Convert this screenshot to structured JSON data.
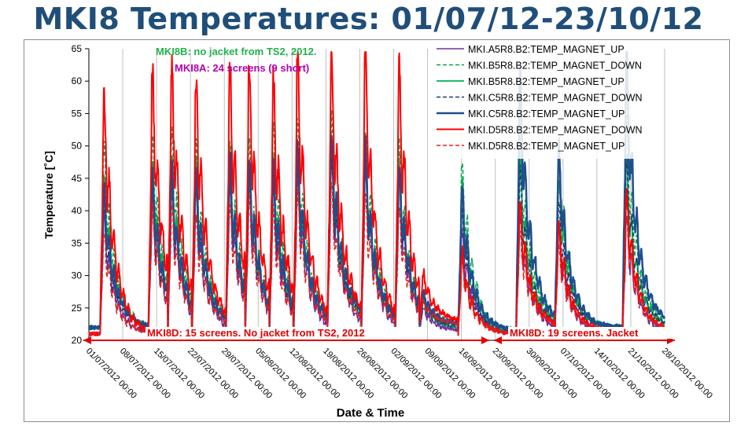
{
  "slide": {
    "title": "MKI8 Temperatures: 01/07/12-23/10/12"
  },
  "annotations": {
    "mki8b_note": "MKI8B: no jacket from TS2, 2012.",
    "mki8a_note": "MKI8A: 24 screens (9 short)",
    "mki8d_left_note": "MKI8D: 15 screens. No jacket from TS2, 2012",
    "mki8d_right_note": "MKI8D: 19 screens. Jacket"
  },
  "colors": {
    "title": "#1f4e79",
    "annotation_green": "#22b14c",
    "annotation_magenta": "#b000b0",
    "annotation_red": "#e00000"
  },
  "chart_data": {
    "type": "line",
    "xlabel": "Date & Time",
    "ylabel": "Temperature [˚C]",
    "ylim": [
      20,
      65
    ],
    "xlim": [
      "01/07/2012 00:00",
      "28/10/2012 00:00"
    ],
    "yticks": [
      "20",
      "25",
      "30",
      "35",
      "40",
      "45",
      "50",
      "55",
      "60",
      "65"
    ],
    "xticks": [
      "01/07/2012 00:00",
      "08/07/2012 00:00",
      "15/07/2012 00:00",
      "22/07/2012 00:00",
      "29/07/2012 00:00",
      "05/08/2012 00:00",
      "12/08/2012 00:00",
      "19/08/2012 00:00",
      "26/08/2012 00:00",
      "02/09/2012 00:00",
      "09/09/2012 00:00",
      "16/09/2012 00:00",
      "23/09/2012 00:00",
      "30/09/2012 00:00",
      "07/10/2012 00:00",
      "14/10/2012 00:00",
      "21/10/2012 00:00",
      "28/10/2012 00:00"
    ],
    "grid": {
      "vertical": true,
      "horizontal": false
    },
    "legend_position": "top-right",
    "peak_dates": [
      "04/07/2012",
      "14/07/2012",
      "18/07/2012",
      "23/07/2012",
      "30/07/2012",
      "03/08/2012",
      "08/08/2012",
      "13/08/2012",
      "20/08/2012",
      "27/08/2012",
      "03/09/2012",
      "08/09/2012",
      "16/09/2012",
      "28/09/2012",
      "06/10/2012",
      "20/10/2012"
    ],
    "series": [
      {
        "name": "MKI.A5R8.B2:TEMP_MAGNET_UP",
        "color": "#7030a0",
        "dash": "solid",
        "width": 1.5,
        "base": [
          21,
          21.5,
          21,
          21,
          21.5,
          21,
          21,
          21,
          21.5,
          21,
          21,
          21.5,
          21,
          21.5,
          21,
          21
        ],
        "peaks": [
          38,
          40,
          42,
          41,
          42,
          43,
          42,
          44,
          46,
          45,
          43,
          25,
          36,
          38,
          36,
          38
        ]
      },
      {
        "name": "MKI.B5R8.B2:TEMP_MAGNET_DOWN",
        "color": "#00a651",
        "dash": "dashed",
        "width": 1.5,
        "base": [
          22,
          22.5,
          22.5,
          22,
          22.5,
          22,
          22,
          22,
          23,
          22.5,
          22,
          22.5,
          21.5,
          22.5,
          22,
          22
        ],
        "peaks": [
          48,
          50,
          50,
          48,
          49,
          48,
          50,
          51,
          52,
          50,
          48,
          27,
          46,
          50,
          48,
          52
        ]
      },
      {
        "name": "MKI.B5R8.B2:TEMP_MAGNET_UP",
        "color": "#00b050",
        "dash": "solid",
        "width": 1.8,
        "base": [
          22,
          22.5,
          22,
          22,
          22,
          22,
          21.5,
          22,
          22.5,
          22,
          22,
          22,
          21,
          22,
          22,
          22
        ],
        "peaks": [
          44,
          46,
          46,
          45,
          46,
          45,
          46,
          47,
          48,
          47,
          45,
          26,
          43,
          46,
          44,
          46
        ]
      },
      {
        "name": "MKI.C5R8.B2:TEMP_MAGNET_DOWN",
        "color": "#1f3a70",
        "dash": "dashed",
        "width": 1.5,
        "base": [
          22,
          22,
          22,
          22,
          22,
          22,
          21.5,
          22,
          22.5,
          22,
          22,
          22,
          21,
          22,
          22,
          22
        ],
        "peaks": [
          39,
          41,
          43,
          42,
          44,
          44,
          43,
          46,
          47,
          46,
          44,
          26,
          38,
          44,
          40,
          46
        ]
      },
      {
        "name": "MKI.C5R8.B2:TEMP_MAGNET_UP",
        "color": "#1f4e8c",
        "dash": "solid",
        "width": 2.5,
        "base": [
          22,
          22.5,
          22,
          22,
          22,
          22,
          22,
          22,
          23,
          22,
          22,
          22.5,
          21.5,
          22.5,
          22,
          22.5
        ],
        "peaks": [
          42,
          44,
          45,
          44,
          46,
          46,
          45,
          48,
          50,
          48,
          46,
          27,
          42,
          58,
          48,
          61
        ]
      },
      {
        "name": "MKI.D5R8.B2:TEMP_MAGNET_DOWN",
        "color": "#ff0000",
        "dash": "solid",
        "width": 2,
        "base": [
          21,
          22,
          22,
          22,
          22,
          22,
          22,
          22,
          22.5,
          22,
          22,
          23,
          21,
          22,
          21.5,
          21.5
        ],
        "peaks": [
          56,
          59,
          60,
          58,
          60,
          60,
          58,
          61,
          62,
          62,
          60,
          30,
          33,
          40,
          37,
          41
        ]
      },
      {
        "name": "MKI.D5R8.B2:TEMP_MAGNET_UP",
        "color": "#e02020",
        "dash": "dashed",
        "width": 1.5,
        "base": [
          21,
          22,
          22,
          22,
          22,
          22,
          21.5,
          22,
          22.5,
          22,
          22,
          22.5,
          21,
          22,
          21.5,
          21.5
        ],
        "peaks": [
          36,
          39,
          39,
          38,
          40,
          40,
          39,
          41,
          42,
          41,
          39,
          26,
          32,
          36,
          34,
          38
        ]
      }
    ]
  }
}
